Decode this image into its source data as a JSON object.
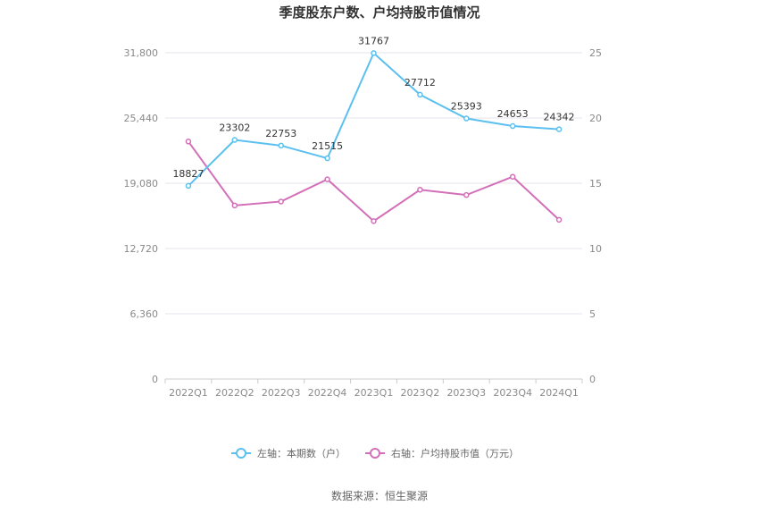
{
  "chart_data": {
    "type": "line",
    "title": "季度股东户数、户均持股市值情况",
    "categories": [
      "2022Q1",
      "2022Q2",
      "2022Q3",
      "2022Q4",
      "2023Q1",
      "2023Q2",
      "2023Q3",
      "2023Q4",
      "2024Q1"
    ],
    "left_axis": {
      "ylim": [
        0,
        31800
      ],
      "ticks": [
        "0",
        "6,360",
        "12,720",
        "19,080",
        "25,440",
        "31,800"
      ],
      "tick_values": [
        0,
        6360,
        12720,
        19080,
        25440,
        31800
      ]
    },
    "right_axis": {
      "ylim": [
        0,
        25
      ],
      "ticks": [
        "0",
        "5",
        "10",
        "15",
        "20",
        "25"
      ],
      "tick_values": [
        0,
        5,
        10,
        15,
        20,
        25
      ]
    },
    "series": [
      {
        "name": "左轴：本期数（户）",
        "axis": "left",
        "color": "#5bc0f0",
        "values": [
          18827,
          23302,
          22753,
          21515,
          31767,
          27712,
          25393,
          24653,
          24342
        ],
        "labels": [
          "18827",
          "23302",
          "22753",
          "21515",
          "31767",
          "27712",
          "25393",
          "24653",
          "24342"
        ]
      },
      {
        "name": "右轴：户均持股市值（万元）",
        "axis": "right",
        "color": "#d36fb8",
        "values": [
          18.2,
          13.3,
          13.6,
          15.3,
          12.1,
          14.5,
          14.1,
          15.5,
          12.2
        ]
      }
    ],
    "legend_position": "bottom",
    "grid": true
  },
  "source": "数据来源：恒生聚源"
}
